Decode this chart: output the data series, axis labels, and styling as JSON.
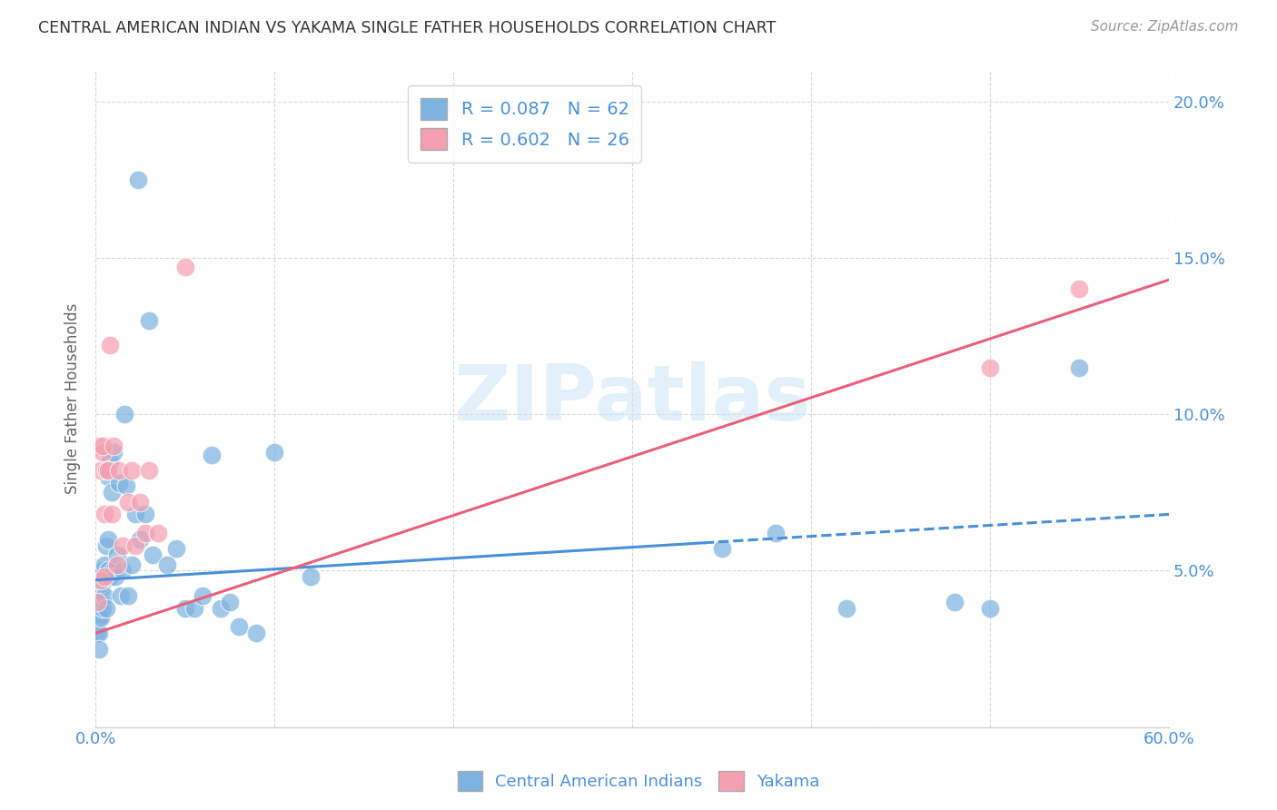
{
  "title": "CENTRAL AMERICAN INDIAN VS YAKAMA SINGLE FATHER HOUSEHOLDS CORRELATION CHART",
  "source": "Source: ZipAtlas.com",
  "ylabel": "Single Father Households",
  "watermark": "ZIPatlas",
  "xlim": [
    0.0,
    0.6
  ],
  "ylim": [
    0.0,
    0.21
  ],
  "xticks": [
    0.0,
    0.1,
    0.2,
    0.3,
    0.4,
    0.5,
    0.6
  ],
  "yticks": [
    0.0,
    0.05,
    0.1,
    0.15,
    0.2
  ],
  "blue_R": 0.087,
  "blue_N": 62,
  "pink_R": 0.602,
  "pink_N": 26,
  "blue_color": "#7eb3e0",
  "pink_color": "#f4a0b0",
  "blue_line_color": "#4a90d9",
  "pink_line_color": "#e8607a",
  "axis_color": "#4a90d9",
  "grid_color": "#d8d8d8",
  "legend_label_blue": "Central American Indians",
  "legend_label_pink": "Yakama",
  "blue_points_x": [
    0.001,
    0.001,
    0.001,
    0.001,
    0.002,
    0.002,
    0.002,
    0.002,
    0.002,
    0.003,
    0.003,
    0.003,
    0.003,
    0.004,
    0.004,
    0.004,
    0.005,
    0.005,
    0.005,
    0.006,
    0.006,
    0.007,
    0.007,
    0.007,
    0.008,
    0.008,
    0.009,
    0.01,
    0.01,
    0.011,
    0.012,
    0.013,
    0.014,
    0.015,
    0.016,
    0.017,
    0.018,
    0.02,
    0.022,
    0.024,
    0.025,
    0.028,
    0.03,
    0.032,
    0.04,
    0.045,
    0.05,
    0.055,
    0.06,
    0.065,
    0.07,
    0.075,
    0.08,
    0.09,
    0.1,
    0.12,
    0.35,
    0.38,
    0.42,
    0.48,
    0.5,
    0.55
  ],
  "blue_points_y": [
    0.04,
    0.038,
    0.035,
    0.03,
    0.042,
    0.038,
    0.035,
    0.03,
    0.025,
    0.048,
    0.044,
    0.04,
    0.035,
    0.05,
    0.046,
    0.038,
    0.052,
    0.047,
    0.042,
    0.058,
    0.038,
    0.08,
    0.06,
    0.05,
    0.085,
    0.048,
    0.075,
    0.088,
    0.05,
    0.048,
    0.055,
    0.078,
    0.042,
    0.05,
    0.1,
    0.077,
    0.042,
    0.052,
    0.068,
    0.175,
    0.06,
    0.068,
    0.13,
    0.055,
    0.052,
    0.057,
    0.038,
    0.038,
    0.042,
    0.087,
    0.038,
    0.04,
    0.032,
    0.03,
    0.088,
    0.048,
    0.057,
    0.062,
    0.038,
    0.04,
    0.038,
    0.115
  ],
  "pink_points_x": [
    0.001,
    0.002,
    0.003,
    0.003,
    0.004,
    0.004,
    0.005,
    0.005,
    0.006,
    0.007,
    0.008,
    0.009,
    0.01,
    0.012,
    0.013,
    0.015,
    0.018,
    0.02,
    0.022,
    0.025,
    0.028,
    0.03,
    0.035,
    0.05,
    0.5,
    0.55
  ],
  "pink_points_y": [
    0.04,
    0.09,
    0.047,
    0.082,
    0.088,
    0.09,
    0.048,
    0.068,
    0.082,
    0.082,
    0.122,
    0.068,
    0.09,
    0.052,
    0.082,
    0.058,
    0.072,
    0.082,
    0.058,
    0.072,
    0.062,
    0.082,
    0.062,
    0.147,
    0.115,
    0.14
  ],
  "blue_line_x0": 0.0,
  "blue_line_x_solid_end": 0.34,
  "blue_line_x1": 0.6,
  "blue_line_y0": 0.047,
  "blue_line_y1": 0.068,
  "pink_line_x0": 0.0,
  "pink_line_x1": 0.6,
  "pink_line_y0": 0.03,
  "pink_line_y1": 0.143
}
